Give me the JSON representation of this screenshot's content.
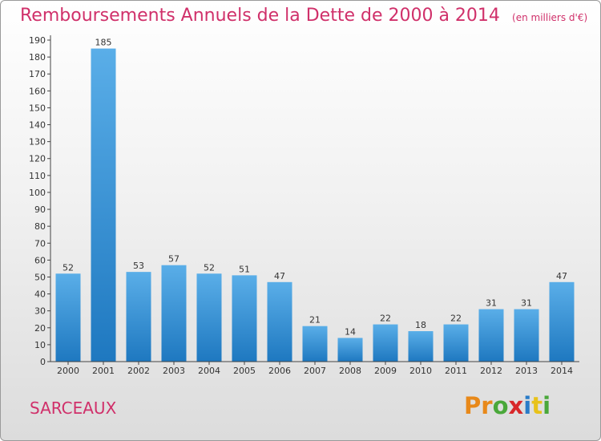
{
  "chart_data": {
    "type": "bar",
    "title": "Remboursements Annuels de la Dette de 2000 à 2014",
    "unit_note": "(en milliers d'€)",
    "categories": [
      "2000",
      "2001",
      "2002",
      "2003",
      "2004",
      "2005",
      "2006",
      "2007",
      "2008",
      "2009",
      "2010",
      "2011",
      "2012",
      "2013",
      "2014"
    ],
    "values": [
      52,
      185,
      53,
      57,
      52,
      51,
      47,
      21,
      14,
      22,
      18,
      22,
      31,
      31,
      47
    ],
    "y_ticks": [
      0,
      10,
      20,
      30,
      40,
      50,
      60,
      70,
      80,
      90,
      100,
      110,
      120,
      130,
      140,
      150,
      160,
      170,
      180,
      190
    ],
    "ylim": [
      0,
      190
    ],
    "grid": false,
    "bar_color_top": "#5aaee8",
    "bar_color_bottom": "#1e78c0"
  },
  "footer": {
    "city": "SARCEAUX",
    "brand_letters": [
      {
        "ch": "P",
        "color": "#e8891a"
      },
      {
        "ch": "r",
        "color": "#e8891a"
      },
      {
        "ch": "o",
        "color": "#4aa83a"
      },
      {
        "ch": "x",
        "color": "#d8282a"
      },
      {
        "ch": "i",
        "color": "#2a7cc8"
      },
      {
        "ch": "t",
        "color": "#e8c21a"
      },
      {
        "ch": "i",
        "color": "#4aa83a"
      }
    ]
  },
  "colors": {
    "accent": "#d0306a"
  }
}
